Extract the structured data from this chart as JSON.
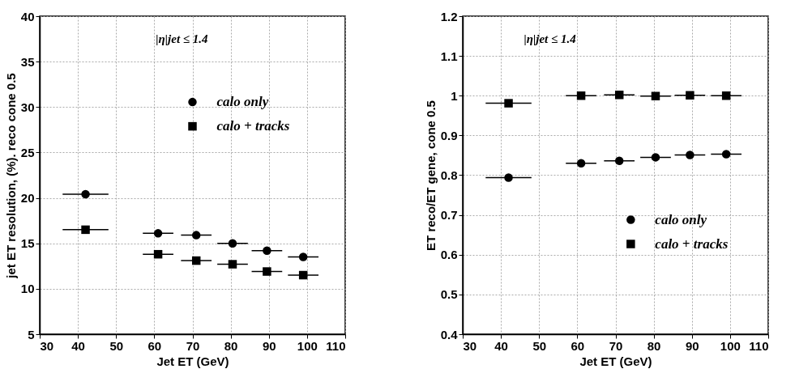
{
  "chart_data": [
    {
      "type": "scatter",
      "xlabel": "Jet ET (GeV)",
      "ylabel": "jet ET resolution, (%). reco cone 0.5",
      "annotations": [
        "|η|jet ≤ 1.4"
      ],
      "x": [
        42,
        61,
        71,
        80.5,
        89.5,
        99
      ],
      "xlim": [
        30,
        110
      ],
      "xticks": [
        30,
        40,
        50,
        60,
        70,
        80,
        90,
        100,
        110
      ],
      "ylim": [
        5,
        40
      ],
      "yticks": [
        5,
        10,
        15,
        20,
        25,
        30,
        35,
        40
      ],
      "grid": true,
      "legend": "top",
      "series": [
        {
          "name": "calo only",
          "color": "#000000",
          "marker": "circle",
          "values": [
            20.4,
            16.1,
            15.9,
            15.0,
            14.2,
            13.5
          ],
          "xerrors": [
            6,
            4,
            4,
            4,
            4,
            4
          ]
        },
        {
          "name": "calo + tracks",
          "color": "#000000",
          "marker": "square",
          "values": [
            16.5,
            13.8,
            13.1,
            12.7,
            11.9,
            11.5
          ],
          "xerrors": [
            6,
            4,
            4,
            4,
            4,
            4
          ]
        }
      ]
    },
    {
      "type": "scatter",
      "xlabel": "Jet ET (GeV)",
      "ylabel": "ET reco/ET gene, cone 0.5",
      "annotations": [
        "|η|jet ≤ 1.4"
      ],
      "x": [
        42,
        61,
        71,
        80.5,
        89.5,
        99
      ],
      "xlim": [
        30,
        110
      ],
      "xticks": [
        30,
        40,
        50,
        60,
        70,
        80,
        90,
        100,
        110
      ],
      "ylim": [
        0.4,
        1.2
      ],
      "yticks": [
        0.4,
        0.5,
        0.6,
        0.7,
        0.8,
        0.9,
        {
          "value": 1,
          "label": "1"
        },
        1.1,
        1.2
      ],
      "grid": true,
      "legend": "bottom",
      "series": [
        {
          "name": "calo only",
          "color": "#000000",
          "marker": "circle",
          "values": [
            0.794,
            0.83,
            0.836,
            0.845,
            0.851,
            0.853
          ],
          "xerrors": [
            6,
            4,
            4,
            4,
            4,
            4
          ]
        },
        {
          "name": "calo + tracks",
          "color": "#000000",
          "marker": "square",
          "values": [
            0.981,
            1.0,
            1.002,
            0.999,
            1.001,
            1.0
          ],
          "xerrors": [
            6,
            4,
            4,
            4,
            4,
            4
          ]
        }
      ]
    }
  ]
}
